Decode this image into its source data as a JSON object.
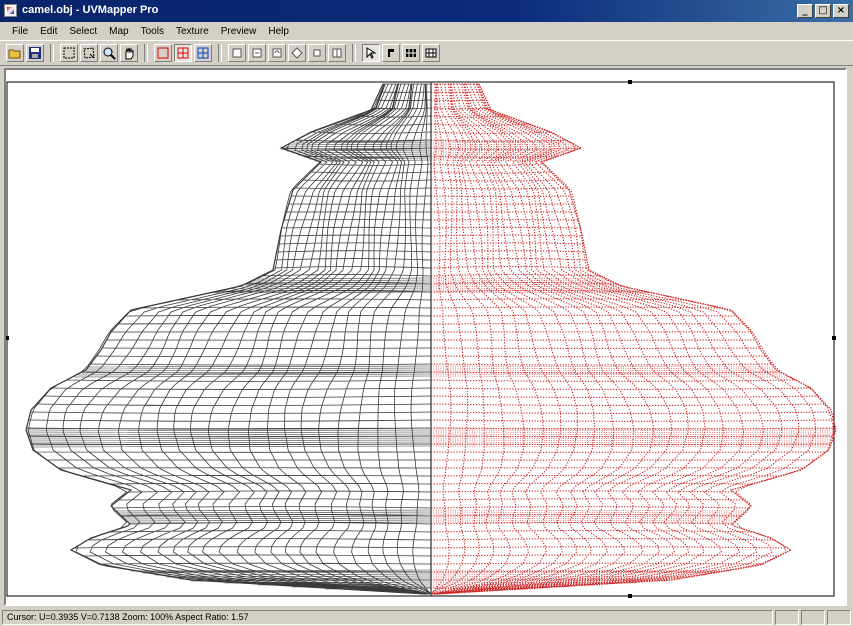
{
  "window": {
    "title": "camel.obj - UVMapper Pro",
    "buttons": [
      "_",
      "□",
      "×"
    ]
  },
  "menu": {
    "items": [
      "File",
      "Edit",
      "Select",
      "Map",
      "Tools",
      "Texture",
      "Preview",
      "Help"
    ]
  },
  "toolbar": {
    "groups": [
      [
        "open-icon",
        "save-icon"
      ],
      [
        "select-icon",
        "select-lasso-icon",
        "zoom-icon",
        "pan-icon"
      ],
      [
        "vertex-select-icon",
        "facet-select-icon",
        "group-select-icon"
      ],
      [
        "move-icon",
        "rotate-icon",
        "scale-icon",
        "flip-icon",
        "weld-icon",
        "split-icon"
      ],
      [
        "pointer-icon",
        "snap-icon",
        "mesh-icon",
        "grid-icon"
      ]
    ]
  },
  "canvas": {
    "colors": {
      "left_mesh": "#3a3a3a",
      "right_mesh": "#cc2222",
      "frame": "#000000"
    }
  },
  "status": {
    "text": "Cursor: U=0.3935 V=0.7138  Zoom: 100%  Aspect Ratio: 1.57",
    "panes": [
      "",
      "",
      ""
    ]
  }
}
